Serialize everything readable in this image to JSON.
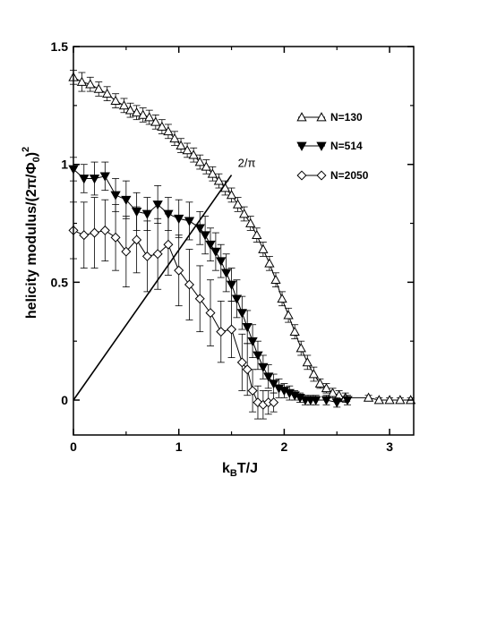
{
  "chart_data": {
    "type": "scatter",
    "xlabel_main": "k",
    "xlabel_sub": "B",
    "xlabel_rest": "T/J",
    "ylabel_main": "helicity modulus/(2π/Φ",
    "ylabel_sub": "0",
    "ylabel_close": ")",
    "ylabel_sup": "2",
    "xlim": [
      0,
      3.3
    ],
    "ylim": [
      -0.15,
      1.5
    ],
    "xticks": [
      0,
      1,
      2,
      3
    ],
    "xtick_labels": [
      "0",
      "1",
      "2",
      "3"
    ],
    "yticks": [
      0,
      0.5,
      1,
      1.5
    ],
    "ytick_labels": [
      "0",
      "0.5",
      "1",
      "1.5"
    ],
    "grid": false,
    "legend_position": "right, upper-middle",
    "annotation": {
      "text": "2/π",
      "x": 1.56,
      "y": 0.99
    },
    "reference_line": {
      "x": [
        0,
        1.5
      ],
      "y": [
        0,
        0.955
      ]
    },
    "series": [
      {
        "name": "N=130",
        "marker": "triangle-up-open",
        "points": [
          [
            0.0,
            1.37,
            0.03
          ],
          [
            0.08,
            1.35,
            0.04
          ],
          [
            0.16,
            1.34,
            0.03
          ],
          [
            0.24,
            1.32,
            0.03
          ],
          [
            0.32,
            1.3,
            0.03
          ],
          [
            0.4,
            1.27,
            0.03
          ],
          [
            0.48,
            1.25,
            0.03
          ],
          [
            0.54,
            1.23,
            0.03
          ],
          [
            0.6,
            1.22,
            0.03
          ],
          [
            0.66,
            1.21,
            0.03
          ],
          [
            0.72,
            1.2,
            0.03
          ],
          [
            0.78,
            1.18,
            0.03
          ],
          [
            0.84,
            1.16,
            0.03
          ],
          [
            0.9,
            1.14,
            0.03
          ],
          [
            0.96,
            1.11,
            0.03
          ],
          [
            1.02,
            1.08,
            0.03
          ],
          [
            1.08,
            1.06,
            0.03
          ],
          [
            1.14,
            1.04,
            0.03
          ],
          [
            1.2,
            1.01,
            0.03
          ],
          [
            1.26,
            0.99,
            0.03
          ],
          [
            1.32,
            0.96,
            0.03
          ],
          [
            1.38,
            0.93,
            0.03
          ],
          [
            1.44,
            0.9,
            0.03
          ],
          [
            1.5,
            0.87,
            0.03
          ],
          [
            1.56,
            0.83,
            0.03
          ],
          [
            1.62,
            0.79,
            0.03
          ],
          [
            1.68,
            0.75,
            0.03
          ],
          [
            1.74,
            0.7,
            0.03
          ],
          [
            1.8,
            0.64,
            0.03
          ],
          [
            1.86,
            0.58,
            0.03
          ],
          [
            1.92,
            0.51,
            0.03
          ],
          [
            1.98,
            0.43,
            0.03
          ],
          [
            2.04,
            0.36,
            0.03
          ],
          [
            2.1,
            0.29,
            0.03
          ],
          [
            2.16,
            0.22,
            0.03
          ],
          [
            2.22,
            0.16,
            0.03
          ],
          [
            2.28,
            0.11,
            0.03
          ],
          [
            2.34,
            0.07,
            0.02
          ],
          [
            2.4,
            0.05,
            0.02
          ],
          [
            2.46,
            0.03,
            0.02
          ],
          [
            2.52,
            0.02,
            0.02
          ],
          [
            2.58,
            0.01,
            0.02
          ],
          [
            2.8,
            0.01,
            0.01
          ],
          [
            2.9,
            0.0,
            0.01
          ],
          [
            3.0,
            0.0,
            0.01
          ],
          [
            3.1,
            0.0,
            0.01
          ],
          [
            3.2,
            0.0,
            0.01
          ]
        ]
      },
      {
        "name": "N=514",
        "marker": "triangle-down-filled",
        "points": [
          [
            0.0,
            0.98,
            0.05
          ],
          [
            0.1,
            0.94,
            0.06
          ],
          [
            0.2,
            0.94,
            0.07
          ],
          [
            0.3,
            0.95,
            0.06
          ],
          [
            0.4,
            0.87,
            0.07
          ],
          [
            0.5,
            0.85,
            0.08
          ],
          [
            0.6,
            0.8,
            0.08
          ],
          [
            0.7,
            0.79,
            0.07
          ],
          [
            0.8,
            0.83,
            0.08
          ],
          [
            0.9,
            0.79,
            0.07
          ],
          [
            1.0,
            0.77,
            0.08
          ],
          [
            1.1,
            0.76,
            0.08
          ],
          [
            1.2,
            0.73,
            0.07
          ],
          [
            1.25,
            0.7,
            0.08
          ],
          [
            1.3,
            0.66,
            0.07
          ],
          [
            1.35,
            0.63,
            0.08
          ],
          [
            1.4,
            0.59,
            0.07
          ],
          [
            1.45,
            0.54,
            0.08
          ],
          [
            1.5,
            0.49,
            0.07
          ],
          [
            1.55,
            0.43,
            0.08
          ],
          [
            1.6,
            0.37,
            0.07
          ],
          [
            1.65,
            0.31,
            0.07
          ],
          [
            1.7,
            0.25,
            0.07
          ],
          [
            1.75,
            0.19,
            0.06
          ],
          [
            1.8,
            0.14,
            0.05
          ],
          [
            1.85,
            0.1,
            0.05
          ],
          [
            1.9,
            0.07,
            0.04
          ],
          [
            1.95,
            0.05,
            0.04
          ],
          [
            2.0,
            0.04,
            0.03
          ],
          [
            2.05,
            0.03,
            0.03
          ],
          [
            2.1,
            0.02,
            0.02
          ],
          [
            2.15,
            0.01,
            0.02
          ],
          [
            2.2,
            0.0,
            0.02
          ],
          [
            2.25,
            0.0,
            0.02
          ],
          [
            2.3,
            0.0,
            0.02
          ],
          [
            2.4,
            0.0,
            0.02
          ],
          [
            2.5,
            -0.01,
            0.02
          ],
          [
            2.6,
            0.0,
            0.02
          ]
        ]
      },
      {
        "name": "N=2050",
        "marker": "diamond-open",
        "points": [
          [
            0.0,
            0.72,
            0.12
          ],
          [
            0.1,
            0.7,
            0.14
          ],
          [
            0.2,
            0.71,
            0.15
          ],
          [
            0.3,
            0.72,
            0.13
          ],
          [
            0.4,
            0.69,
            0.14
          ],
          [
            0.5,
            0.63,
            0.15
          ],
          [
            0.6,
            0.68,
            0.14
          ],
          [
            0.7,
            0.61,
            0.15
          ],
          [
            0.8,
            0.62,
            0.15
          ],
          [
            0.9,
            0.66,
            0.13
          ],
          [
            1.0,
            0.55,
            0.15
          ],
          [
            1.1,
            0.49,
            0.15
          ],
          [
            1.2,
            0.43,
            0.14
          ],
          [
            1.3,
            0.37,
            0.14
          ],
          [
            1.4,
            0.29,
            0.13
          ],
          [
            1.5,
            0.3,
            0.12
          ],
          [
            1.6,
            0.16,
            0.12
          ],
          [
            1.65,
            0.13,
            0.11
          ],
          [
            1.7,
            0.04,
            0.09
          ],
          [
            1.75,
            -0.01,
            0.07
          ],
          [
            1.8,
            -0.02,
            0.06
          ],
          [
            1.85,
            -0.01,
            0.05
          ],
          [
            1.9,
            -0.01,
            0.04
          ]
        ]
      }
    ]
  }
}
